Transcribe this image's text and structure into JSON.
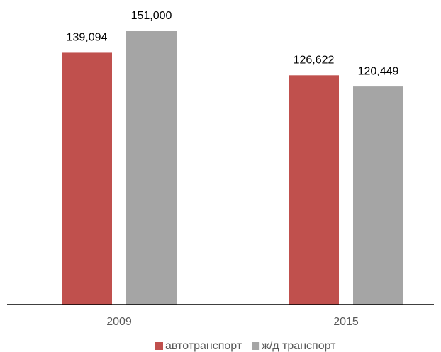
{
  "chart_data": {
    "type": "bar",
    "categories": [
      "2009",
      "2015"
    ],
    "series": [
      {
        "name": "автотранспорт",
        "color": "#c0504d",
        "values": [
          139094,
          126622
        ],
        "value_labels": [
          "139,094",
          "126,622"
        ]
      },
      {
        "name": "ж/д транспорт",
        "color": "#a5a5a5",
        "values": [
          151000,
          120449
        ],
        "value_labels": [
          "151,000",
          "120,449"
        ]
      }
    ],
    "ylim": [
      0,
      160000
    ],
    "legend": "bottom"
  }
}
